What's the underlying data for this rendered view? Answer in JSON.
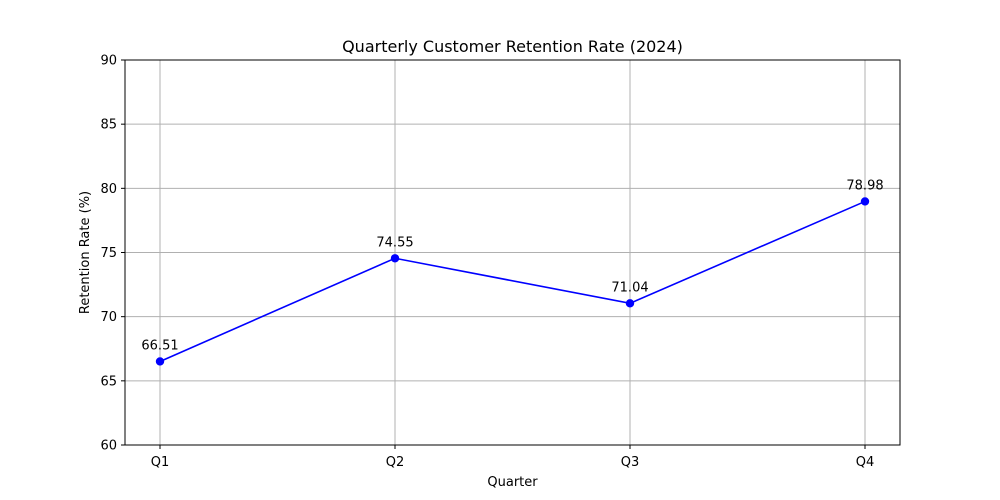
{
  "chart_data": {
    "type": "line",
    "title": "Quarterly Customer Retention Rate (2024)",
    "xlabel": "Quarter",
    "ylabel": "Retention Rate (%)",
    "categories": [
      "Q1",
      "Q2",
      "Q3",
      "Q4"
    ],
    "series": [
      {
        "values": [
          66.51,
          74.55,
          71.04,
          78.98
        ],
        "color": "#0000ff",
        "marker": "circle"
      }
    ],
    "data_labels": [
      "66.51",
      "74.55",
      "71.04",
      "78.98"
    ],
    "ylim": [
      60,
      90
    ],
    "yticks": [
      60,
      65,
      70,
      75,
      80,
      85,
      90
    ],
    "grid": true,
    "legend": "none"
  }
}
